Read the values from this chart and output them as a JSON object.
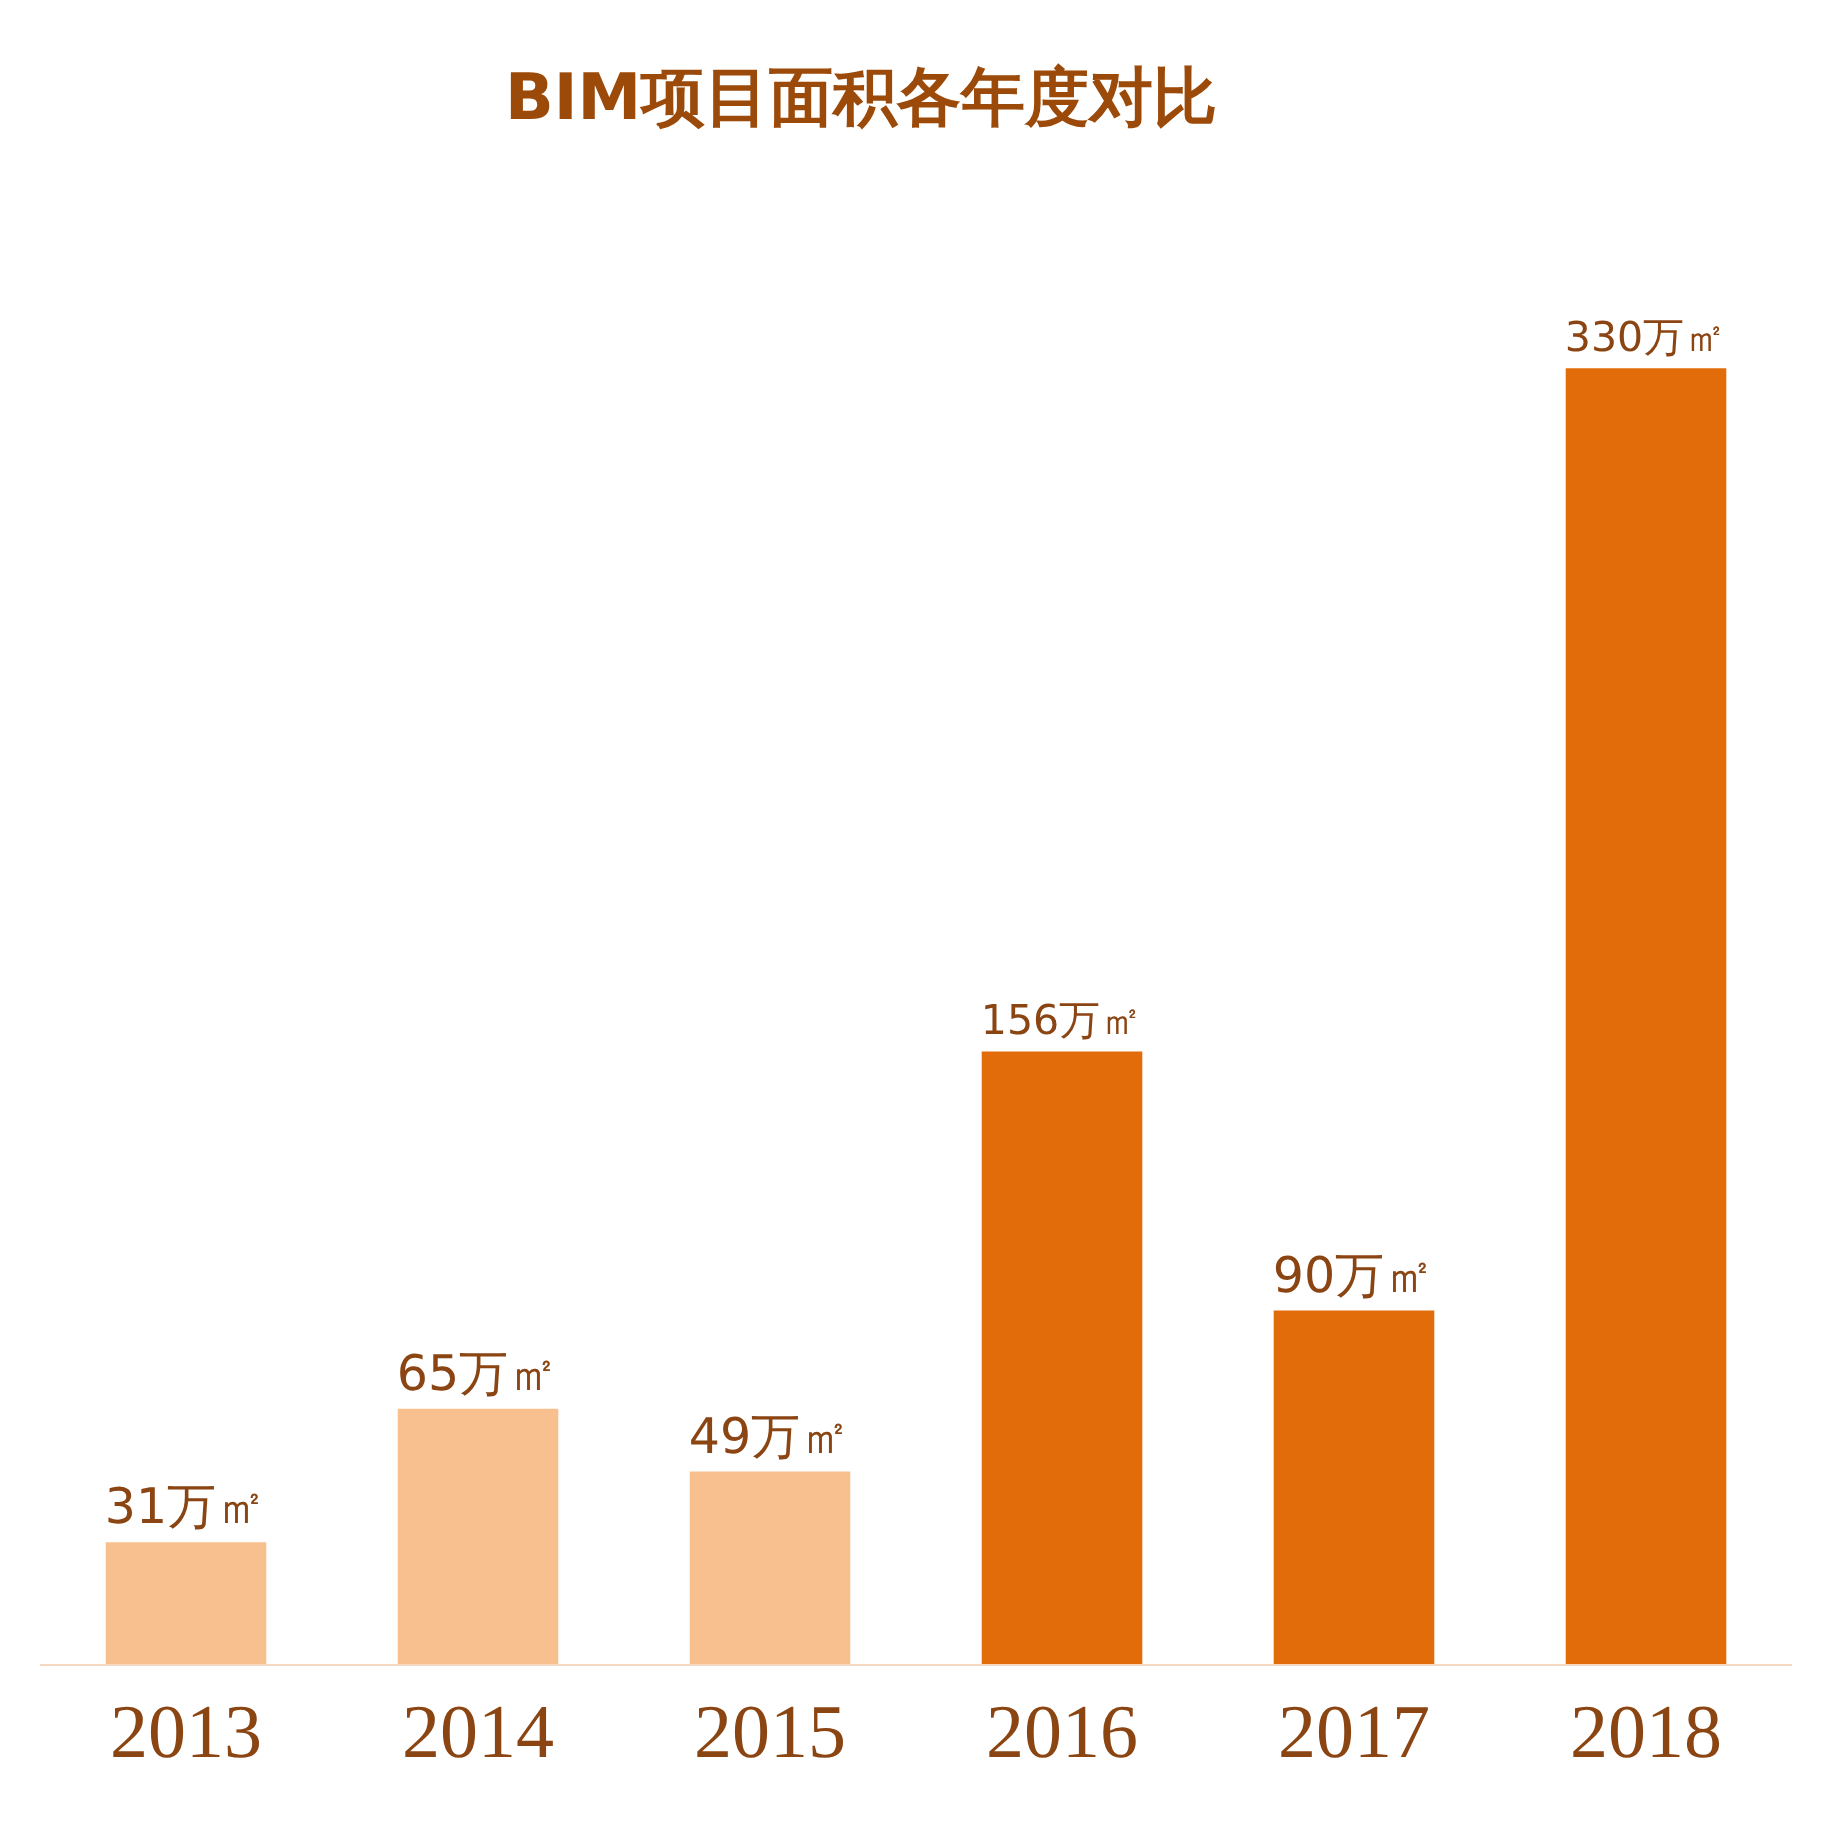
{
  "chart_data": {
    "type": "bar",
    "title": "BIM项目面积各年度对比",
    "categories": [
      "2013",
      "2014",
      "2015",
      "2016",
      "2017",
      "2018"
    ],
    "values": [
      31,
      65,
      49,
      156,
      90,
      330
    ],
    "colors": [
      "#f9c08f",
      "#f9c08f",
      "#f9c08f",
      "#e36c0a",
      "#e36c0a",
      "#e36c0a"
    ],
    "value_labels": [
      "31万㎡",
      "65万㎡",
      "49万㎡",
      "156万㎡",
      "90万㎡",
      "330万㎡"
    ]
  }
}
